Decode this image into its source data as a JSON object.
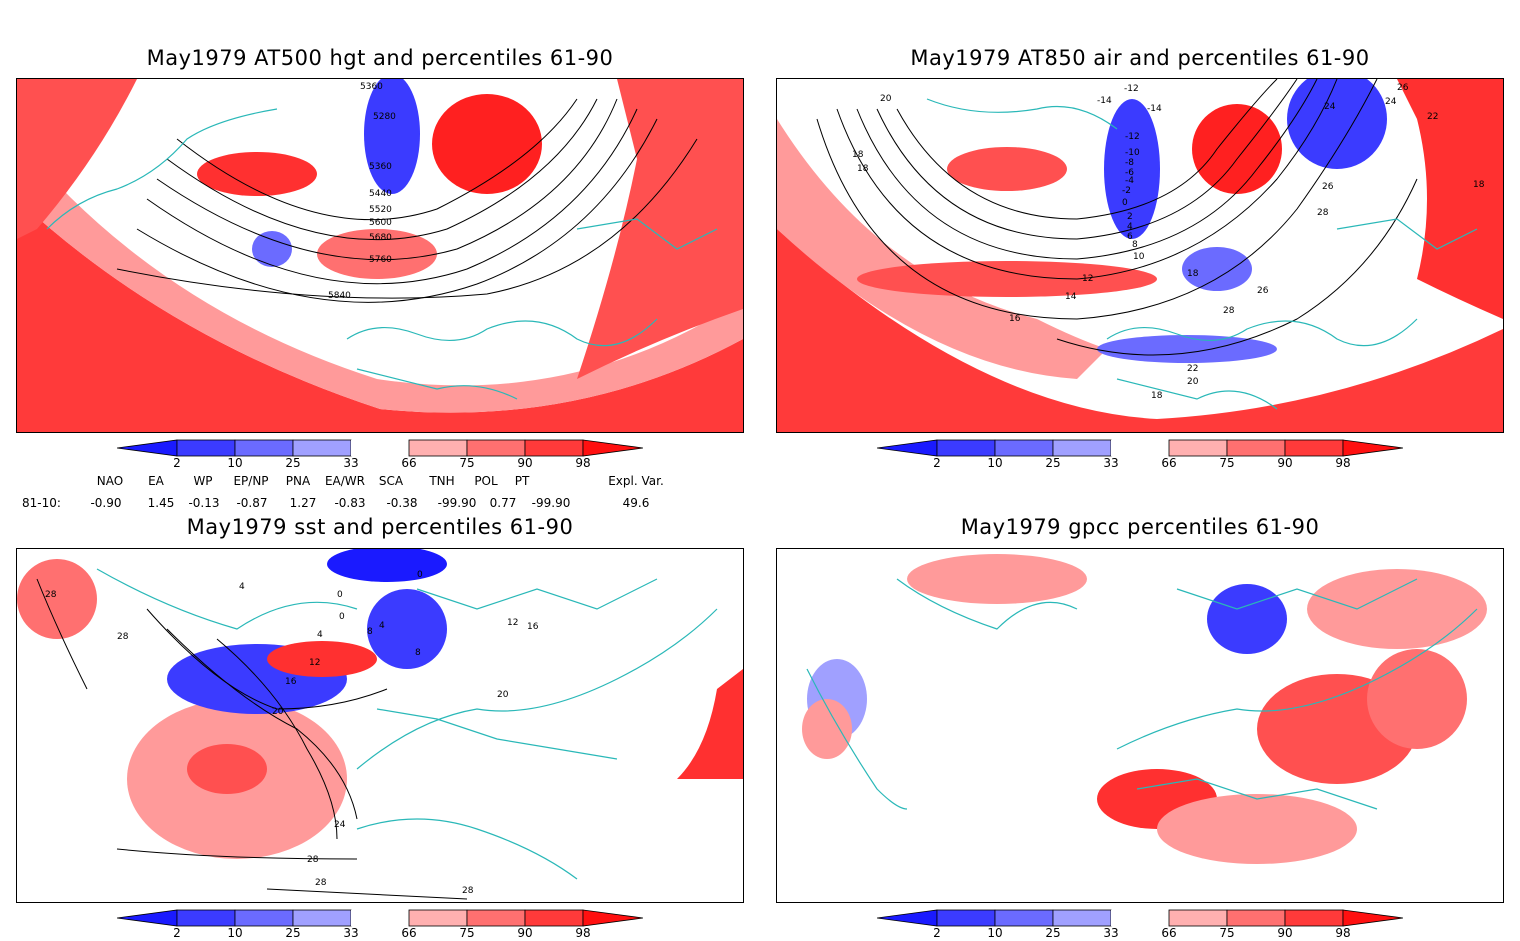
{
  "panels": {
    "p1": {
      "title": "May1979 AT500 hgt and percentiles 61-90",
      "contour_labels": [
        "5360",
        "5280",
        "5360",
        "5440",
        "5520",
        "5600",
        "5680",
        "5760",
        "5840"
      ]
    },
    "p2": {
      "title": "May1979 AT850 air and percentiles 61-90",
      "contour_labels": [
        "-12",
        "-14",
        "-14",
        "-12",
        "-10",
        "-8",
        "-6",
        "-4",
        "-2",
        "0",
        "2",
        "4",
        "6",
        "8",
        "10",
        "12",
        "14",
        "16",
        "18",
        "18",
        "18",
        "18",
        "18",
        "20",
        "20",
        "22",
        "22",
        "24",
        "24",
        "26",
        "26",
        "26",
        "28",
        "28"
      ]
    },
    "p3": {
      "title": "May1979 sst and percentiles 61-90",
      "contour_labels": [
        "28",
        "28",
        "4",
        "0",
        "0",
        "0",
        "4",
        "4",
        "8",
        "8",
        "12",
        "16",
        "20",
        "24",
        "28",
        "28",
        "28",
        "12",
        "16",
        "20"
      ]
    },
    "p4": {
      "title": "May1979 gpcc percentiles 61-90"
    }
  },
  "colorbar": {
    "labels": [
      "2",
      "10",
      "25",
      "33",
      "66",
      "75",
      "90",
      "98"
    ],
    "colors": [
      "#1a1aff",
      "#3b3bff",
      "#6b6bff",
      "#a0a0ff",
      "#ffffff",
      "#ffb0b0",
      "#ff7070",
      "#ff3a3a",
      "#ff1010"
    ]
  },
  "indices": {
    "headers": [
      "NAO",
      "EA",
      "WP",
      "EP/NP",
      "PNA",
      "EA/WR",
      "SCA",
      "TNH",
      "POL",
      "PT",
      "Expl. Var."
    ],
    "row_label": "81-10:",
    "values": [
      "-0.90",
      "1.45",
      "-0.13",
      "-0.87",
      "1.27",
      "-0.83",
      "-0.38",
      "-99.90",
      "0.77",
      "-99.90",
      "49.6"
    ]
  },
  "colors": {
    "blue": "#3b3bff",
    "light_blue": "#a0a0ff",
    "red": "#ff1a1a",
    "light_red": "#ff9a9a",
    "coast": "#2ab8b8"
  }
}
